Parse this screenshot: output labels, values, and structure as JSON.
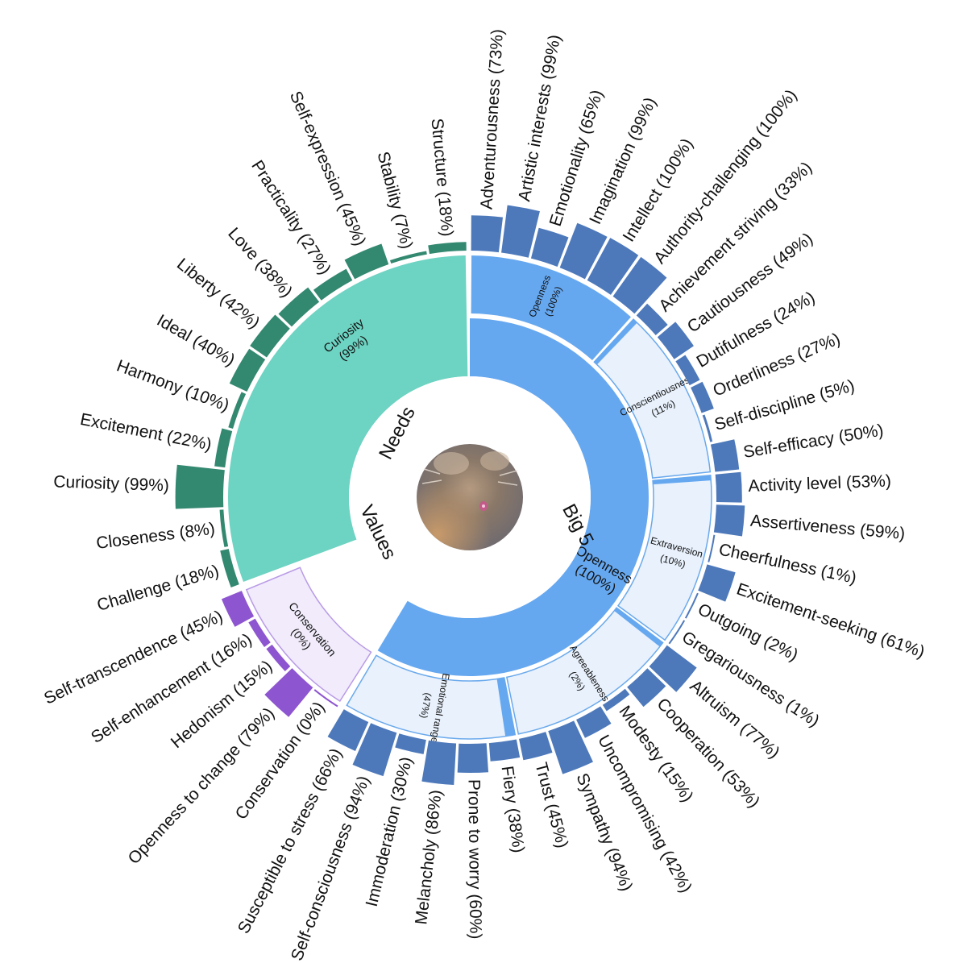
{
  "chart_data": {
    "type": "sunburst",
    "center_labels": {
      "big5": "Big 5",
      "needs": "Needs",
      "values": "Values"
    },
    "big5": {
      "highlight": {
        "name": "Openness",
        "percent": "(100%)"
      },
      "traits": [
        {
          "name": "Openness",
          "percent": "(100%)",
          "score": 1.0,
          "facets": [
            {
              "label": "Adventurousness (73%)",
              "value": 0.73
            },
            {
              "label": "Artistic interests (99%)",
              "value": 0.99
            },
            {
              "label": "Emotionality (65%)",
              "value": 0.65
            },
            {
              "label": "Imagination (99%)",
              "value": 0.99
            },
            {
              "label": "Intellect (100%)",
              "value": 1.0
            },
            {
              "label": "Authority-challenging (100%)",
              "value": 1.0
            }
          ]
        },
        {
          "name": "Conscientiousness",
          "percent": "(11%)",
          "score": 0.11,
          "facets": [
            {
              "label": "Achievement striving (33%)",
              "value": 0.33
            },
            {
              "label": "Cautiousness (49%)",
              "value": 0.49
            },
            {
              "label": "Dutifulness (24%)",
              "value": 0.24
            },
            {
              "label": "Orderliness (27%)",
              "value": 0.27
            },
            {
              "label": "Self-discipline (5%)",
              "value": 0.05
            },
            {
              "label": "Self-efficacy (50%)",
              "value": 0.5
            }
          ]
        },
        {
          "name": "Extraversion",
          "percent": "(10%)",
          "score": 0.1,
          "facets": [
            {
              "label": "Activity level (53%)",
              "value": 0.53
            },
            {
              "label": "Assertiveness (59%)",
              "value": 0.59
            },
            {
              "label": "Cheerfulness (1%)",
              "value": 0.01
            },
            {
              "label": "Excitement-seeking (61%)",
              "value": 0.61
            },
            {
              "label": "Outgoing (2%)",
              "value": 0.02
            },
            {
              "label": "Gregariousness (1%)",
              "value": 0.01
            }
          ]
        },
        {
          "name": "Agreeableness",
          "percent": "(2%)",
          "score": 0.02,
          "facets": [
            {
              "label": "Altruism (77%)",
              "value": 0.77
            },
            {
              "label": "Cooperation (53%)",
              "value": 0.53
            },
            {
              "label": "Modesty (15%)",
              "value": 0.15
            },
            {
              "label": "Uncompromising (42%)",
              "value": 0.42
            },
            {
              "label": "Sympathy (94%)",
              "value": 0.94
            },
            {
              "label": "Trust (45%)",
              "value": 0.45
            }
          ]
        },
        {
          "name": "Emotional range",
          "percent": "(47%)",
          "score": 0.47,
          "facets": [
            {
              "label": "Fiery (38%)",
              "value": 0.38
            },
            {
              "label": "Prone to worry (60%)",
              "value": 0.6
            },
            {
              "label": "Melancholy (86%)",
              "value": 0.86
            },
            {
              "label": "Immoderation (30%)",
              "value": 0.3
            },
            {
              "label": "Self-consciousness (94%)",
              "value": 0.94
            },
            {
              "label": "Susceptible to stress (66%)",
              "value": 0.66
            }
          ]
        }
      ]
    },
    "values": {
      "highlight": {
        "name": "Conservation",
        "percent": "(0%)",
        "score": 0.0
      },
      "facets": [
        {
          "label": "Conservation (0%)",
          "value": 0.0
        },
        {
          "label": "Openness to change (79%)",
          "value": 0.79
        },
        {
          "label": "Hedonism (15%)",
          "value": 0.15
        },
        {
          "label": "Self-enhancement (16%)",
          "value": 0.16
        },
        {
          "label": "Self-transcendence (45%)",
          "value": 0.45
        }
      ]
    },
    "needs": {
      "highlight": {
        "name": "Curiosity",
        "percent": "(99%)",
        "score": 0.99
      },
      "facets": [
        {
          "label": "Challenge (18%)",
          "value": 0.18
        },
        {
          "label": "Closeness (8%)",
          "value": 0.08
        },
        {
          "label": "Curiosity (99%)",
          "value": 0.99
        },
        {
          "label": "Excitement (22%)",
          "value": 0.22
        },
        {
          "label": "Harmony (10%)",
          "value": 0.1
        },
        {
          "label": "Ideal (40%)",
          "value": 0.4
        },
        {
          "label": "Liberty (42%)",
          "value": 0.42
        },
        {
          "label": "Love (38%)",
          "value": 0.38
        },
        {
          "label": "Practicality (27%)",
          "value": 0.27
        },
        {
          "label": "Self-expression (45%)",
          "value": 0.45
        },
        {
          "label": "Stability (7%)",
          "value": 0.07
        },
        {
          "label": "Structure (18%)",
          "value": 0.18
        }
      ]
    },
    "colors": {
      "big5_bar": "#4d79bb",
      "big5_fill": "#66a8f0",
      "big5_light": "#e8f1fc",
      "big5_stroke": "#6aa9ec",
      "needs_bar": "#338870",
      "needs_fill": "#6dd3c2",
      "values_bar": "#8e55d0",
      "values_light": "#f1ebfb",
      "values_stroke": "#b89ae6"
    },
    "center_icon": "cat-photo"
  }
}
